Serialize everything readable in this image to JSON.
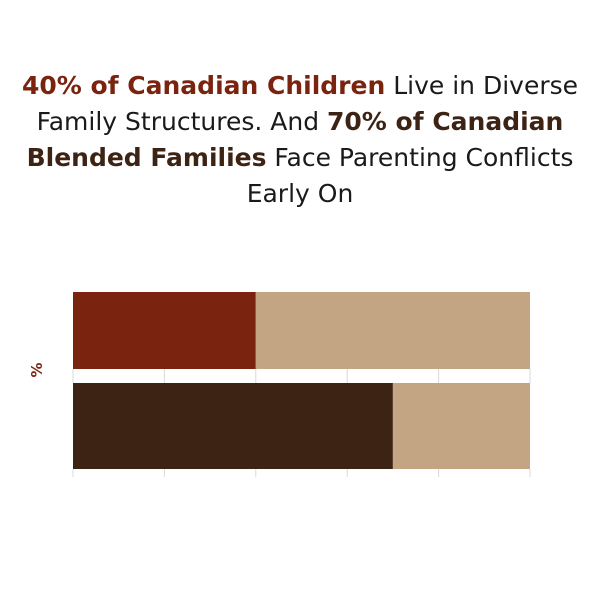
{
  "title": {
    "part1_highlight": "40% of Canadian Children",
    "part2": " Live in Diverse Family Structures. And ",
    "part3_highlight": "70% of Canadian Blended Families",
    "part4": " Face Parenting Conflicts Early On"
  },
  "colors": {
    "highlight_1": "#7a2410",
    "highlight_2": "#3d2314",
    "remainder": "#c4a583",
    "ylabel": "#7a2410"
  },
  "chart_data": {
    "type": "bar",
    "orientation": "horizontal",
    "stacked": true,
    "ylabel": "%",
    "xlim": [
      0,
      100
    ],
    "grid": false,
    "bars": [
      {
        "value": 40,
        "remainder": 60,
        "color": "#7a2410",
        "remainder_color": "#c4a583"
      },
      {
        "value": 70,
        "remainder": 30,
        "color": "#3d2314",
        "remainder_color": "#c4a583"
      }
    ]
  }
}
